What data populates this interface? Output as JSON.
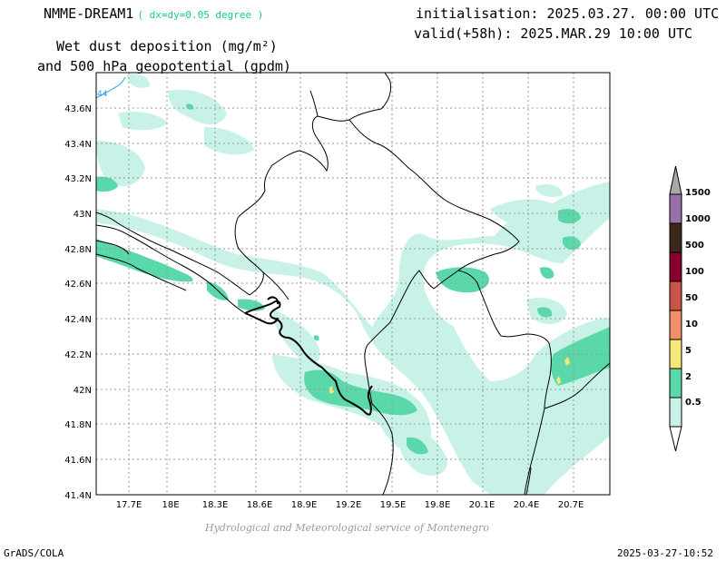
{
  "header": {
    "model": "NMME-DREAM1",
    "resolution": "( dx=dy=0.05 degree )",
    "initialisation": "initialisation: 2025.03.27. 00:00 UTC",
    "valid": "valid(+58h): 2025.MAR.29 10:00 UTC",
    "title_line1": "Wet dust deposition (mg/m²)",
    "title_line2": "and 500 hPa geopotential (gpdm)"
  },
  "map": {
    "lat_labels": [
      "43.6N",
      "43.4N",
      "43.2N",
      "43N",
      "42.8N",
      "42.6N",
      "42.4N",
      "42.2N",
      "42N",
      "41.8N",
      "41.6N",
      "41.4N"
    ],
    "lon_labels": [
      "17.7E",
      "18E",
      "18.3E",
      "18.6E",
      "18.9E",
      "19.2E",
      "19.5E",
      "19.8E",
      "20.1E",
      "20.4E",
      "20.7E"
    ],
    "contour_label": "44",
    "colors": {
      "very_light": "#c8f2e8",
      "light": "#5ad8aa",
      "yellow": "#f5e878",
      "contour": "#2aa8e8"
    }
  },
  "legend": {
    "levels": [
      "0.5",
      "2",
      "5",
      "10",
      "50",
      "100",
      "500",
      "1000",
      "1500"
    ],
    "colors": [
      "#c8f2e8",
      "#5ad8aa",
      "#f5e878",
      "#f0906a",
      "#c85448",
      "#880030",
      "#3c2818",
      "#9a70a8",
      "#a8a8a8"
    ]
  },
  "footer": {
    "credit": "Hydrological and Meteorological service of Montenegro",
    "software": "GrADS/COLA",
    "timestamp": "2025-03-27-10:52"
  }
}
